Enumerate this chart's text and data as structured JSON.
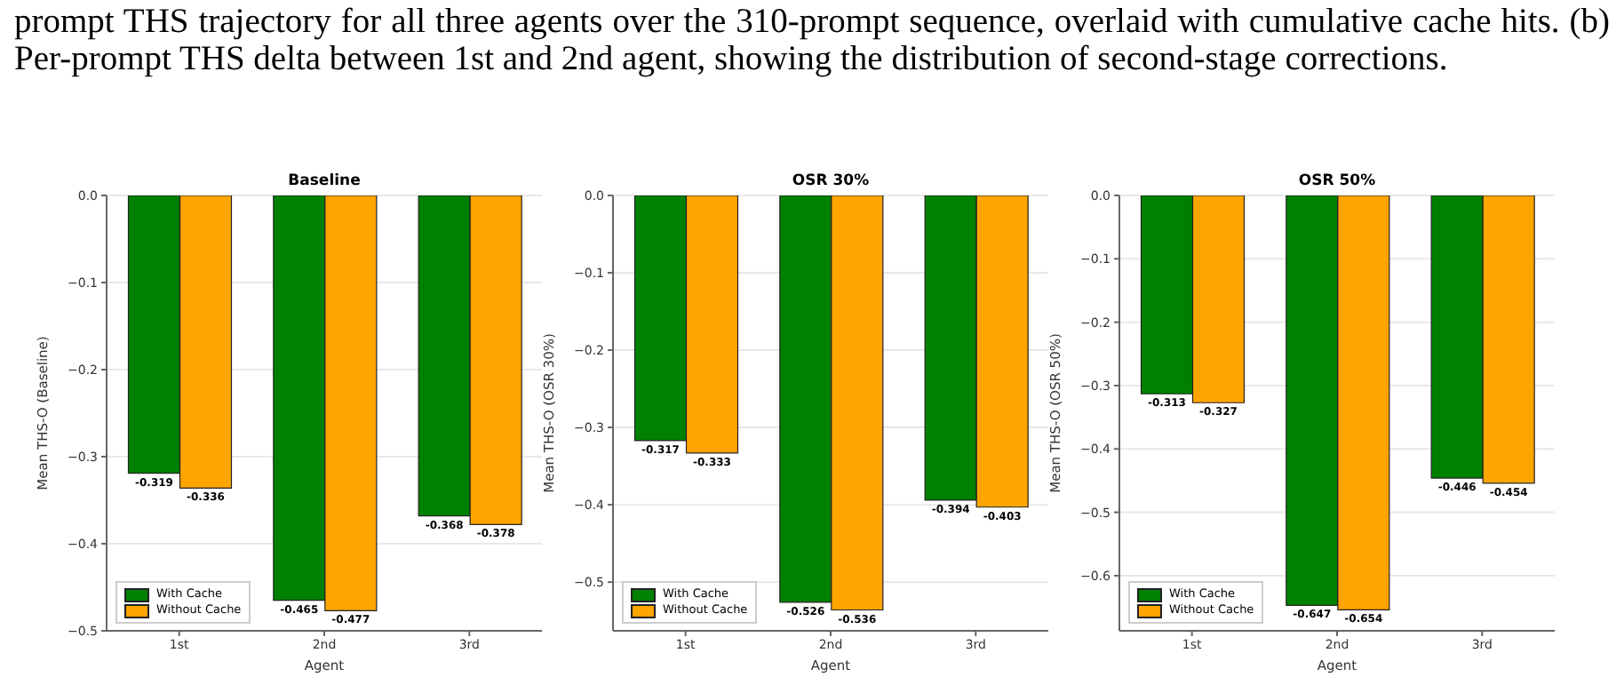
{
  "chart_data": [
    {
      "type": "bar",
      "title": "Baseline",
      "xlabel": "Agent",
      "ylabel": "Mean THS-O (Baseline)",
      "annotations": [
        "prompt THS trajectory for all three agents over the 310-prompt sequence, overlaid with cumulative cache hits. (b) Per-prompt THS delta between 1st and 2nd agent, showing the distribution of second-stage corrections."
      ],
      "categories": [
        "1st",
        "2nd",
        "3rd"
      ],
      "series": [
        {
          "name": "With Cache",
          "color": "#008000",
          "values": [
            -0.319,
            -0.465,
            -0.368
          ]
        },
        {
          "name": "Without Cache",
          "color": "#ffa500",
          "values": [
            -0.336,
            -0.477,
            -0.378
          ]
        }
      ],
      "ylim": [
        -0.5,
        0
      ],
      "yticks": [
        {
          "value": -0.5,
          "label": "−0.5"
        },
        {
          "value": -0.4,
          "label": "−0.4"
        },
        {
          "value": -0.3,
          "label": "−0.3"
        },
        {
          "value": -0.2,
          "label": "−0.2"
        },
        {
          "value": -0.1,
          "label": "−0.1"
        },
        {
          "value": 0,
          "label": "0.0"
        }
      ],
      "grid": "y",
      "legend": "bottom left",
      "data_labels": true
    },
    {
      "type": "bar",
      "title": "OSR 30%",
      "xlabel": "Agent",
      "ylabel": "Mean THS-O (OSR 30%)",
      "categories": [
        "1st",
        "2nd",
        "3rd"
      ],
      "series": [
        {
          "name": "With Cache",
          "color": "#008000",
          "values": [
            -0.317,
            -0.526,
            -0.394
          ]
        },
        {
          "name": "Without Cache",
          "color": "#ffa500",
          "values": [
            -0.333,
            -0.536,
            -0.403
          ]
        }
      ],
      "ylim": [
        -0.563,
        0
      ],
      "yticks": [
        {
          "value": -0.5,
          "label": "−0.5"
        },
        {
          "value": -0.4,
          "label": "−0.4"
        },
        {
          "value": -0.3,
          "label": "−0.3"
        },
        {
          "value": -0.2,
          "label": "−0.2"
        },
        {
          "value": -0.1,
          "label": "−0.1"
        },
        {
          "value": 0,
          "label": "0.0"
        }
      ],
      "grid": "y",
      "legend": "bottom left",
      "data_labels": true
    },
    {
      "type": "bar",
      "title": "OSR 50%",
      "xlabel": "Agent",
      "ylabel": "Mean THS-O (OSR 50%)",
      "categories": [
        "1st",
        "2nd",
        "3rd"
      ],
      "series": [
        {
          "name": "With Cache",
          "color": "#008000",
          "values": [
            -0.313,
            -0.647,
            -0.446
          ]
        },
        {
          "name": "Without Cache",
          "color": "#ffa500",
          "values": [
            -0.327,
            -0.654,
            -0.454
          ]
        }
      ],
      "ylim": [
        -0.687,
        0
      ],
      "yticks": [
        {
          "value": -0.6,
          "label": "−0.6"
        },
        {
          "value": -0.5,
          "label": "−0.5"
        },
        {
          "value": -0.4,
          "label": "−0.4"
        },
        {
          "value": -0.3,
          "label": "−0.3"
        },
        {
          "value": -0.2,
          "label": "−0.2"
        },
        {
          "value": -0.1,
          "label": "−0.1"
        },
        {
          "value": 0,
          "label": "0.0"
        }
      ],
      "grid": "y",
      "legend": "bottom left",
      "data_labels": true
    }
  ]
}
